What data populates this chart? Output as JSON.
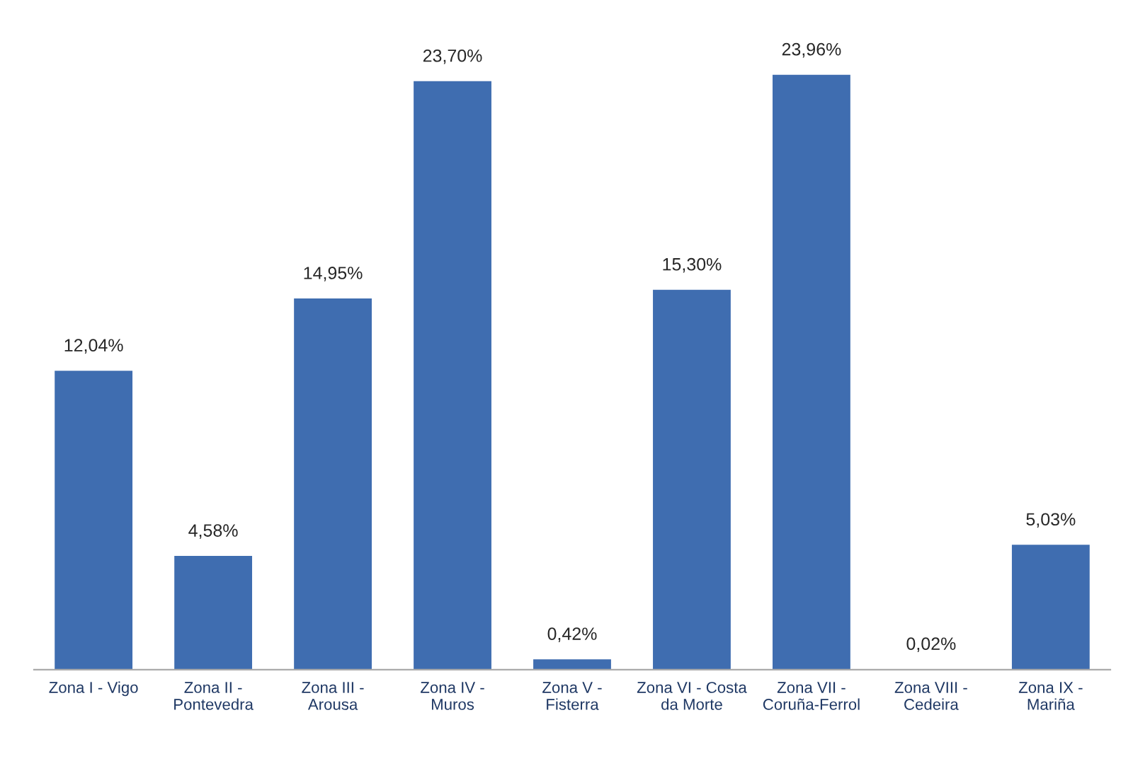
{
  "chart_data": {
    "type": "bar",
    "categories": [
      "Zona I - Vigo",
      "Zona II -\nPontevedra",
      "Zona III -\nArousa",
      "Zona IV -\nMuros",
      "Zona V -\nFisterra",
      "Zona VI - Costa\nda Morte",
      "Zona VII -\nCoruña-Ferrol",
      "Zona VIII -\nCedeira",
      "Zona IX -\nMariña"
    ],
    "values": [
      12.04,
      4.58,
      14.95,
      23.7,
      0.42,
      15.3,
      23.96,
      0.02,
      5.03
    ],
    "value_labels": [
      "12,04%",
      "4,58%",
      "14,95%",
      "23,70%",
      "0,42%",
      "15,30%",
      "23,96%",
      "0,02%",
      "5,03%"
    ],
    "color": "#3f6db0",
    "grid": false,
    "legend": false
  }
}
